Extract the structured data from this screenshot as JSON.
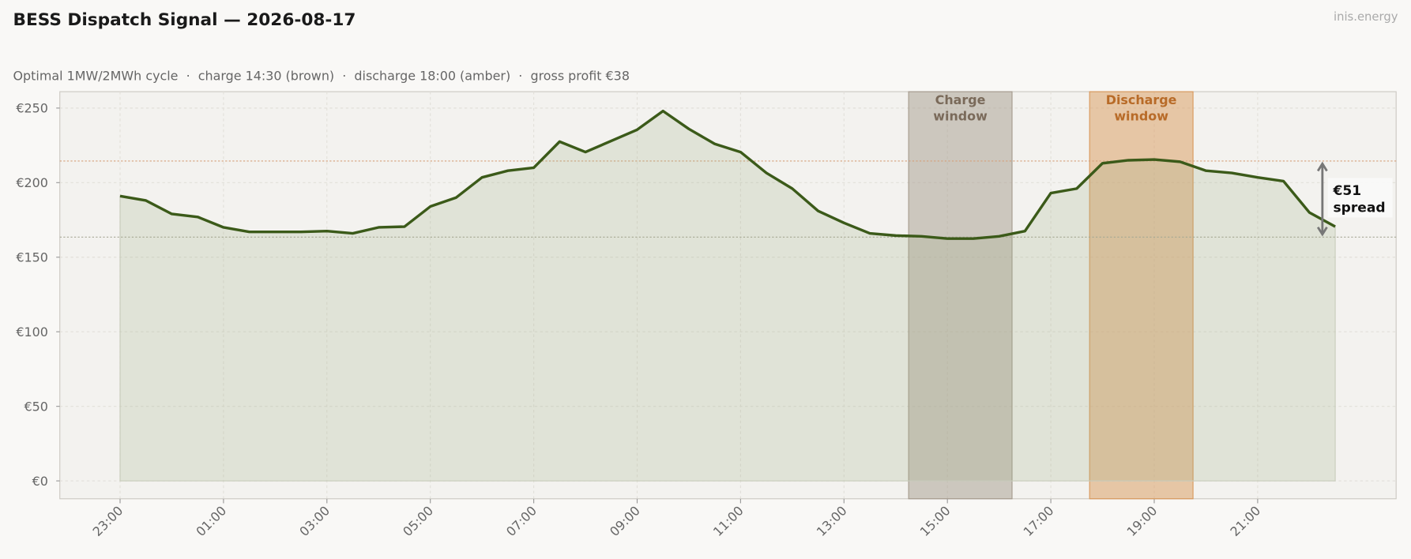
{
  "chart_data": {
    "type": "line",
    "title": "BESS Dispatch Signal — 2026-08-17",
    "subtitle": "Optimal 1MW/2MWh cycle  ·  charge 14:30 (brown)  ·  discharge 18:00 (amber)  ·  gross profit €38",
    "watermark": "inis.energy",
    "categories": [
      "23:00",
      "23:30",
      "00:00",
      "00:30",
      "01:00",
      "01:30",
      "02:00",
      "02:30",
      "03:00",
      "03:30",
      "04:00",
      "04:30",
      "05:00",
      "05:30",
      "06:00",
      "06:30",
      "07:00",
      "07:30",
      "08:00",
      "08:30",
      "09:00",
      "09:30",
      "10:00",
      "10:30",
      "11:00",
      "11:30",
      "12:00",
      "12:30",
      "13:00",
      "13:30",
      "14:00",
      "14:30",
      "15:00",
      "15:30",
      "16:00",
      "16:30",
      "17:00",
      "17:30",
      "18:00",
      "18:30",
      "19:00",
      "19:30",
      "20:00",
      "20:30",
      "21:00",
      "21:30",
      "22:00",
      "22:30"
    ],
    "xticks": [
      "23:00",
      "01:00",
      "03:00",
      "05:00",
      "07:00",
      "09:00",
      "11:00",
      "13:00",
      "15:00",
      "17:00",
      "19:00",
      "21:00"
    ],
    "series": [
      {
        "color": "#3b5a19",
        "values": [
          191,
          188,
          179,
          177,
          170,
          167,
          167,
          167,
          167.5,
          166,
          170,
          170.5,
          184,
          190,
          203.5,
          208,
          210,
          227.5,
          220.5,
          228,
          235.5,
          248,
          236,
          226,
          220.5,
          206.5,
          196,
          181,
          173,
          166,
          164.5,
          164,
          162.5,
          162.5,
          164,
          167.5,
          193,
          196,
          213,
          215,
          215.5,
          214,
          208,
          206.5,
          203.5,
          201,
          180,
          170.5
        ]
      }
    ],
    "ylim": [
      -12,
      261
    ],
    "yticks": [
      {
        "value": 0,
        "label": "€0"
      },
      {
        "value": 50,
        "label": "€50"
      },
      {
        "value": 100,
        "label": "€100"
      },
      {
        "value": 150,
        "label": "€150"
      },
      {
        "value": 200,
        "label": "€200"
      },
      {
        "value": 250,
        "label": "€250"
      }
    ],
    "grid": true,
    "windows": [
      {
        "label_lines": [
          "Charge",
          "window"
        ],
        "start": "14:30",
        "end": "16:30",
        "color": "#a59b8e",
        "text_color": "#7a6a5a"
      },
      {
        "label_lines": [
          "Discharge",
          "window"
        ],
        "start": "18:00",
        "end": "20:00",
        "color": "#d9995c",
        "text_color": "#b86b28"
      }
    ],
    "reference_lines": [
      {
        "value": 214.5,
        "color": "#d4a07a"
      },
      {
        "value": 163.5,
        "color": "#a8a898"
      }
    ],
    "spread_label_lines": [
      "€51",
      "spread"
    ]
  }
}
